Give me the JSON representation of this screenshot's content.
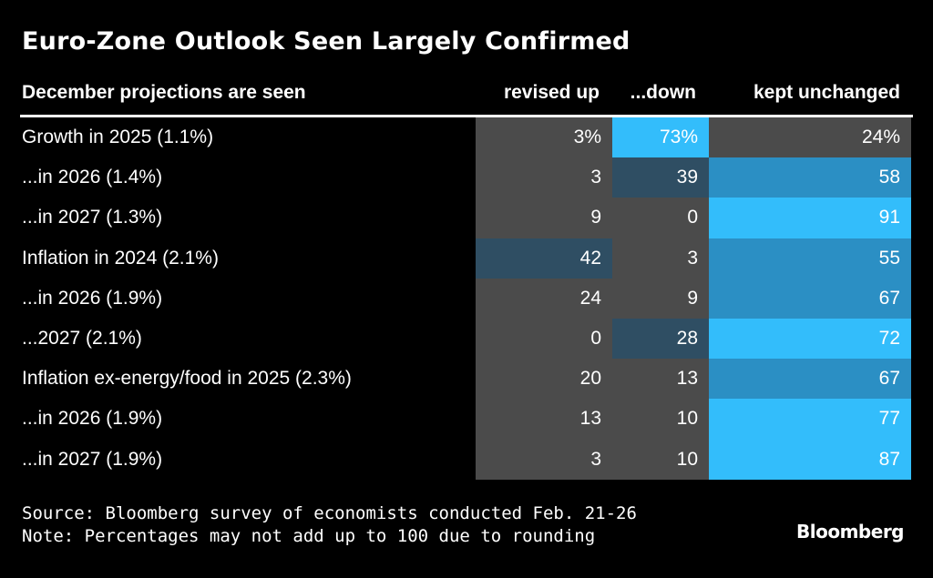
{
  "chart_data": {
    "type": "table",
    "title": "Euro-Zone Outlook Seen Largely Confirmed",
    "header": {
      "label": "December projections are seen",
      "columns": [
        "revised up",
        "...down",
        "kept unchanged"
      ]
    },
    "rows": [
      {
        "label": "Growth in 2025 (1.1%)",
        "values": [
          3,
          73,
          24
        ],
        "display": [
          "3%",
          "73%",
          "24%"
        ]
      },
      {
        "label": "...in 2026 (1.4%)",
        "values": [
          3,
          39,
          58
        ],
        "display": [
          "3",
          "39",
          "58"
        ]
      },
      {
        "label": "...in 2027 (1.3%)",
        "values": [
          9,
          0,
          91
        ],
        "display": [
          "9",
          "0",
          "91"
        ]
      },
      {
        "label": "Inflation in 2024 (2.1%)",
        "values": [
          42,
          3,
          55
        ],
        "display": [
          "42",
          "3",
          "55"
        ]
      },
      {
        "label": "...in 2026 (1.9%)",
        "values": [
          24,
          9,
          67
        ],
        "display": [
          "24",
          "9",
          "67"
        ]
      },
      {
        "label": "...2027 (2.1%)",
        "values": [
          0,
          28,
          72
        ],
        "display": [
          "0",
          "28",
          "72"
        ]
      },
      {
        "label": "Inflation ex-energy/food in 2025 (2.3%)",
        "values": [
          20,
          13,
          67
        ],
        "display": [
          "20",
          "13",
          "67"
        ]
      },
      {
        "label": "...in 2026 (1.9%)",
        "values": [
          13,
          10,
          77
        ],
        "display": [
          "13",
          "10",
          "77"
        ]
      },
      {
        "label": "...in 2027 (1.9%)",
        "values": [
          3,
          10,
          87
        ],
        "display": [
          "3",
          "10",
          "87"
        ]
      }
    ],
    "colors": {
      "background": "#000000",
      "cell_low": "#4b4b4b",
      "cell_mid": "#2f4e63",
      "cell_high": "#2b8fc4",
      "cell_top": "#33bdfb"
    }
  },
  "footer": {
    "source": "Source: Bloomberg survey of economists conducted Feb. 21-26",
    "note": "Note: Percentages may not add up to 100 due to rounding",
    "brand": "Bloomberg"
  }
}
